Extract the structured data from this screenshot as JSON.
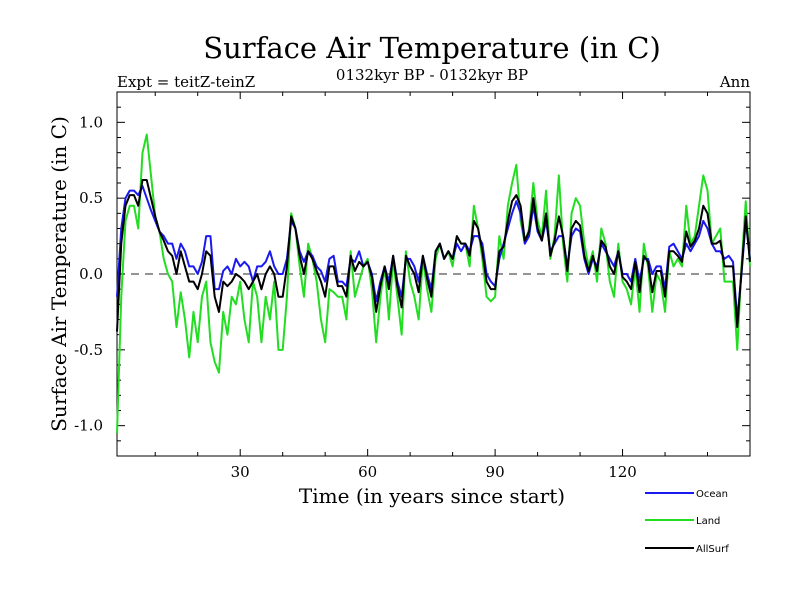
{
  "chart_data": {
    "type": "line",
    "title": "Surface Air Temperature (in C)",
    "subtitle_left": "Expt = teitZ-teinZ",
    "subtitle_center": "0132kyr BP - 0132kyr BP",
    "subtitle_right": "Ann",
    "xlabel": "Time (in years since start)",
    "ylabel": "Surface Air Temperature (in C)",
    "xlim": [
      1,
      150
    ],
    "ylim": [
      -1.2,
      1.2
    ],
    "x_ticks": [
      30,
      60,
      90,
      120
    ],
    "x_tick_labels": [
      "30",
      "60",
      "90",
      "120"
    ],
    "y_ticks": [
      -1.0,
      -0.5,
      0.0,
      0.5,
      1.0
    ],
    "y_tick_labels": [
      "-1.0",
      "-0.5",
      "0.0",
      "0.5",
      "1.0"
    ],
    "zero_line": true,
    "legend_position": "bottom-right",
    "series": [
      {
        "name": "Land",
        "color": "#22dd22",
        "values": [
          -1.05,
          -0.15,
          0.35,
          0.45,
          0.45,
          0.3,
          0.8,
          0.92,
          0.65,
          0.38,
          0.28,
          0.1,
          0.0,
          -0.05,
          -0.35,
          -0.12,
          -0.3,
          -0.55,
          -0.25,
          -0.45,
          -0.15,
          -0.05,
          -0.45,
          -0.58,
          -0.65,
          -0.25,
          -0.4,
          -0.15,
          -0.2,
          -0.05,
          -0.3,
          -0.45,
          -0.05,
          -0.15,
          -0.45,
          -0.15,
          -0.3,
          -0.05,
          -0.5,
          -0.5,
          -0.15,
          0.4,
          0.3,
          0.05,
          -0.15,
          0.2,
          0.1,
          -0.05,
          -0.3,
          -0.45,
          -0.1,
          -0.12,
          -0.15,
          -0.15,
          -0.3,
          0.15,
          -0.15,
          -0.05,
          0.05,
          0.1,
          -0.1,
          -0.45,
          -0.15,
          0.05,
          -0.3,
          0.1,
          -0.15,
          -0.4,
          0.15,
          -0.05,
          -0.15,
          -0.3,
          0.1,
          -0.1,
          -0.25,
          0.1,
          0.2,
          0.1,
          0.15,
          0.05,
          0.25,
          0.2,
          0.2,
          0.05,
          0.45,
          0.3,
          0.1,
          -0.15,
          -0.18,
          -0.15,
          0.25,
          0.1,
          0.45,
          0.6,
          0.72,
          0.35,
          0.2,
          0.3,
          0.6,
          0.35,
          0.25,
          0.55,
          0.1,
          0.25,
          0.65,
          0.2,
          -0.05,
          0.4,
          0.5,
          0.45,
          0.2,
          0.05,
          0.15,
          -0.05,
          0.3,
          0.2,
          -0.05,
          -0.15,
          0.2,
          -0.05,
          -0.1,
          -0.2,
          0.05,
          -0.25,
          0.2,
          0.05,
          -0.25,
          0.0,
          -0.05,
          -0.25,
          0.15,
          0.05,
          0.1,
          0.05,
          0.45,
          0.2,
          0.25,
          0.45,
          0.65,
          0.55,
          0.2,
          0.25,
          0.3,
          -0.05,
          -0.05,
          -0.05,
          -0.5,
          0.05,
          0.48,
          0.05
        ]
      },
      {
        "name": "Ocean",
        "color": "#1a1aee",
        "values": [
          -0.15,
          0.3,
          0.5,
          0.55,
          0.55,
          0.52,
          0.58,
          0.5,
          0.42,
          0.35,
          0.28,
          0.25,
          0.2,
          0.2,
          0.1,
          0.2,
          0.15,
          0.05,
          0.05,
          0.0,
          0.08,
          0.25,
          0.25,
          -0.1,
          -0.1,
          0.02,
          0.05,
          0.0,
          0.1,
          0.05,
          0.08,
          0.05,
          -0.05,
          0.05,
          0.05,
          0.08,
          0.15,
          0.05,
          0.0,
          0.0,
          0.1,
          0.35,
          0.3,
          0.15,
          0.08,
          0.15,
          0.12,
          0.05,
          0.02,
          -0.05,
          0.1,
          0.12,
          -0.05,
          -0.05,
          -0.08,
          0.1,
          0.08,
          0.15,
          0.05,
          0.08,
          0.0,
          -0.18,
          -0.05,
          0.05,
          -0.05,
          0.12,
          -0.05,
          -0.15,
          0.1,
          0.1,
          0.05,
          -0.05,
          0.12,
          0.0,
          -0.1,
          0.15,
          0.2,
          0.1,
          0.15,
          0.1,
          0.2,
          0.15,
          0.2,
          0.15,
          0.25,
          0.25,
          0.2,
          0.0,
          -0.05,
          -0.08,
          0.1,
          0.2,
          0.3,
          0.4,
          0.48,
          0.4,
          0.2,
          0.25,
          0.45,
          0.28,
          0.22,
          0.35,
          0.15,
          0.2,
          0.25,
          0.25,
          0.05,
          0.25,
          0.3,
          0.28,
          0.1,
          0.0,
          0.1,
          0.05,
          0.2,
          0.15,
          0.1,
          0.05,
          0.15,
          0.0,
          0.0,
          -0.05,
          0.1,
          -0.05,
          0.1,
          0.1,
          0.0,
          0.05,
          0.05,
          -0.1,
          0.18,
          0.2,
          0.15,
          0.1,
          0.2,
          0.15,
          0.2,
          0.25,
          0.35,
          0.3,
          0.2,
          0.15,
          0.15,
          0.1,
          0.12,
          0.08,
          -0.3,
          0.0,
          0.35,
          0.1
        ]
      },
      {
        "name": "AllSurf",
        "color": "#000000",
        "values": [
          -0.38,
          0.2,
          0.45,
          0.52,
          0.52,
          0.45,
          0.62,
          0.62,
          0.5,
          0.38,
          0.28,
          0.22,
          0.15,
          0.12,
          0.0,
          0.15,
          0.05,
          -0.05,
          -0.05,
          -0.1,
          0.0,
          0.15,
          0.12,
          -0.15,
          -0.25,
          -0.05,
          -0.08,
          -0.05,
          0.0,
          -0.02,
          -0.05,
          -0.1,
          -0.05,
          0.0,
          -0.1,
          0.0,
          0.05,
          0.0,
          -0.15,
          -0.15,
          0.05,
          0.38,
          0.3,
          0.12,
          0.0,
          0.15,
          0.1,
          0.02,
          -0.05,
          -0.15,
          0.05,
          0.05,
          -0.08,
          -0.08,
          -0.15,
          0.12,
          0.02,
          0.08,
          0.05,
          0.08,
          -0.02,
          -0.25,
          -0.08,
          0.05,
          -0.1,
          0.12,
          -0.08,
          -0.22,
          0.12,
          0.05,
          0.0,
          -0.12,
          0.12,
          -0.03,
          -0.15,
          0.15,
          0.2,
          0.1,
          0.15,
          0.1,
          0.25,
          0.2,
          0.2,
          0.12,
          0.35,
          0.3,
          0.15,
          -0.05,
          -0.1,
          -0.1,
          0.15,
          0.18,
          0.35,
          0.48,
          0.52,
          0.45,
          0.22,
          0.28,
          0.5,
          0.3,
          0.22,
          0.4,
          0.12,
          0.22,
          0.38,
          0.25,
          0.02,
          0.3,
          0.35,
          0.32,
          0.12,
          0.02,
          0.12,
          0.02,
          0.22,
          0.18,
          0.05,
          0.0,
          0.15,
          -0.02,
          -0.05,
          -0.1,
          0.08,
          -0.12,
          0.12,
          0.08,
          -0.12,
          0.02,
          0.02,
          -0.15,
          0.15,
          0.15,
          0.12,
          0.08,
          0.28,
          0.18,
          0.22,
          0.3,
          0.45,
          0.4,
          0.2,
          0.2,
          0.22,
          0.05,
          0.05,
          0.05,
          -0.35,
          0.02,
          0.38,
          0.08
        ]
      }
    ],
    "legend": [
      {
        "name": "Ocean",
        "color": "#1a1aee"
      },
      {
        "name": "Land",
        "color": "#22dd22"
      },
      {
        "name": "AllSurf",
        "color": "#000000"
      }
    ]
  }
}
